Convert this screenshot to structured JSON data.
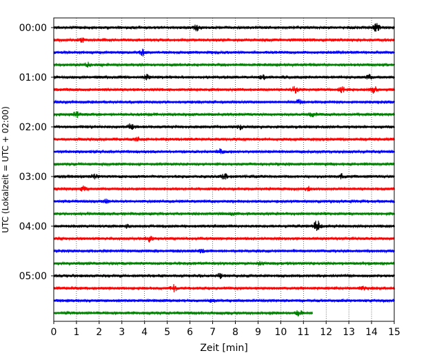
{
  "chart_data": {
    "type": "line",
    "title": "",
    "xlabel": "Zeit  [min]",
    "ylabel": "UTC (Lokalzeit = UTC + 02:00)",
    "xlim": [
      0,
      15
    ],
    "x_ticks": [
      "0",
      "1",
      "2",
      "3",
      "4",
      "5",
      "6",
      "7",
      "8",
      "9",
      "10",
      "11",
      "12",
      "13",
      "14",
      "15"
    ],
    "y_tick_labels": [
      "00:00",
      "01:00",
      "02:00",
      "03:00",
      "04:00",
      "05:00"
    ],
    "y_tick_rows": [
      0,
      4,
      8,
      12,
      16,
      20
    ],
    "grid": "vertical dotted at each minute",
    "legend": "none",
    "row_colors": [
      "#000000",
      "#ff0000",
      "#0000ff",
      "#008000"
    ],
    "series": [
      {
        "row": 0,
        "label_time": "00:00",
        "color": "#000000",
        "x_end": 15,
        "spikes": [
          {
            "x": 6.3,
            "amp": 5
          },
          {
            "x": 14.2,
            "amp": 7
          }
        ]
      },
      {
        "row": 1,
        "label_time": "00:15",
        "color": "#ff0000",
        "x_end": 15,
        "spikes": [
          {
            "x": 1.2,
            "amp": 4
          }
        ]
      },
      {
        "row": 2,
        "label_time": "00:30",
        "color": "#0000ff",
        "x_end": 15,
        "spikes": [
          {
            "x": 3.9,
            "amp": 5
          }
        ]
      },
      {
        "row": 3,
        "label_time": "00:45",
        "color": "#008000",
        "x_end": 15,
        "spikes": [
          {
            "x": 1.5,
            "amp": 4
          }
        ]
      },
      {
        "row": 4,
        "label_time": "01:00",
        "color": "#000000",
        "x_end": 15,
        "spikes": [
          {
            "x": 4.1,
            "amp": 4
          },
          {
            "x": 9.2,
            "amp": 4
          },
          {
            "x": 13.9,
            "amp": 4
          }
        ]
      },
      {
        "row": 5,
        "label_time": "01:15",
        "color": "#ff0000",
        "x_end": 15,
        "spikes": [
          {
            "x": 10.6,
            "amp": 6
          },
          {
            "x": 12.7,
            "amp": 5
          },
          {
            "x": 14.1,
            "amp": 6
          }
        ]
      },
      {
        "row": 6,
        "label_time": "01:30",
        "color": "#0000ff",
        "x_end": 15,
        "spikes": [
          {
            "x": 10.8,
            "amp": 4
          }
        ]
      },
      {
        "row": 7,
        "label_time": "01:45",
        "color": "#008000",
        "x_end": 15,
        "spikes": [
          {
            "x": 1.0,
            "amp": 5
          },
          {
            "x": 11.4,
            "amp": 5
          }
        ]
      },
      {
        "row": 8,
        "label_time": "02:00",
        "color": "#000000",
        "x_end": 15,
        "spikes": [
          {
            "x": 3.4,
            "amp": 5
          },
          {
            "x": 8.2,
            "amp": 4
          }
        ]
      },
      {
        "row": 9,
        "label_time": "02:15",
        "color": "#ff0000",
        "x_end": 15,
        "spikes": [
          {
            "x": 3.7,
            "amp": 4
          }
        ]
      },
      {
        "row": 10,
        "label_time": "02:30",
        "color": "#0000ff",
        "x_end": 15,
        "spikes": [
          {
            "x": 7.3,
            "amp": 4
          }
        ]
      },
      {
        "row": 11,
        "label_time": "02:45",
        "color": "#008000",
        "x_end": 15,
        "spikes": [
          {
            "x": 10.3,
            "amp": 3
          }
        ]
      },
      {
        "row": 12,
        "label_time": "03:00",
        "color": "#000000",
        "x_end": 15,
        "spikes": [
          {
            "x": 1.8,
            "amp": 5
          },
          {
            "x": 7.5,
            "amp": 5
          },
          {
            "x": 12.7,
            "amp": 4
          }
        ]
      },
      {
        "row": 13,
        "label_time": "03:15",
        "color": "#ff0000",
        "x_end": 15,
        "spikes": [
          {
            "x": 1.3,
            "amp": 4
          },
          {
            "x": 11.2,
            "amp": 4
          }
        ]
      },
      {
        "row": 14,
        "label_time": "03:30",
        "color": "#0000ff",
        "x_end": 15,
        "spikes": [
          {
            "x": 2.3,
            "amp": 3
          }
        ]
      },
      {
        "row": 15,
        "label_time": "03:45",
        "color": "#008000",
        "x_end": 15,
        "spikes": [
          {
            "x": 7.9,
            "amp": 3
          }
        ]
      },
      {
        "row": 16,
        "label_time": "04:00",
        "color": "#000000",
        "x_end": 15,
        "spikes": [
          {
            "x": 11.6,
            "amp": 10
          },
          {
            "x": 3.2,
            "amp": 3
          }
        ]
      },
      {
        "row": 17,
        "label_time": "04:15",
        "color": "#ff0000",
        "x_end": 15,
        "spikes": [
          {
            "x": 4.2,
            "amp": 5
          }
        ]
      },
      {
        "row": 18,
        "label_time": "04:30",
        "color": "#0000ff",
        "x_end": 15,
        "spikes": [
          {
            "x": 6.5,
            "amp": 3
          }
        ]
      },
      {
        "row": 19,
        "label_time": "04:45",
        "color": "#008000",
        "x_end": 15,
        "spikes": [
          {
            "x": 9.1,
            "amp": 3
          }
        ]
      },
      {
        "row": 20,
        "label_time": "05:00",
        "color": "#000000",
        "x_end": 15,
        "spikes": [
          {
            "x": 7.3,
            "amp": 4
          }
        ]
      },
      {
        "row": 21,
        "label_time": "05:15",
        "color": "#ff0000",
        "x_end": 15,
        "spikes": [
          {
            "x": 5.3,
            "amp": 5
          },
          {
            "x": 13.6,
            "amp": 3
          }
        ]
      },
      {
        "row": 22,
        "label_time": "05:30",
        "color": "#0000ff",
        "x_end": 15,
        "spikes": [
          {
            "x": 7.0,
            "amp": 3
          }
        ]
      },
      {
        "row": 23,
        "label_time": "05:45",
        "color": "#008000",
        "x_end": 11.4,
        "spikes": [
          {
            "x": 10.8,
            "amp": 5
          }
        ]
      }
    ]
  }
}
